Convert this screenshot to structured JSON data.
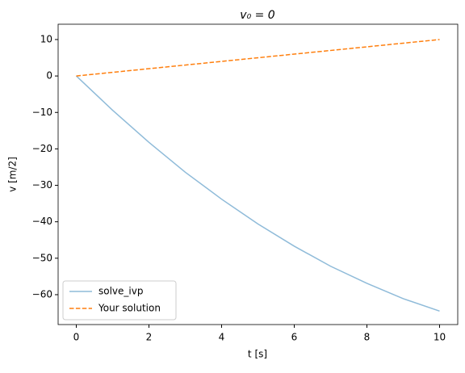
{
  "chart_data": {
    "type": "line",
    "title": "v₀ = 0",
    "xlabel": "t [s]",
    "ylabel": "v [m/2]",
    "series": [
      {
        "name": "solve_ivp",
        "color": "#1f77b4",
        "opacity": 0.5,
        "dash": false,
        "x": [
          0,
          1,
          2,
          3,
          4,
          5,
          6,
          7,
          8,
          9,
          10
        ],
        "values": [
          0,
          -9.4,
          -18.2,
          -26.4,
          -33.8,
          -40.6,
          -46.7,
          -52.2,
          -56.9,
          -61.1,
          -64.5
        ]
      },
      {
        "name": "Your solution",
        "color": "#ff7f0e",
        "opacity": 1,
        "dash": true,
        "x": [
          0,
          10
        ],
        "values": [
          0,
          10
        ]
      }
    ],
    "xlim": [
      -0.5,
      10.5
    ],
    "xticks": [
      0,
      2,
      4,
      6,
      8,
      10
    ],
    "ylim": [
      -68.2,
      14.2
    ],
    "yticks": [
      {
        "value": -60,
        "label": "−60"
      },
      {
        "value": -50,
        "label": "−50"
      },
      {
        "value": -40,
        "label": "−40"
      },
      {
        "value": -30,
        "label": "−30"
      },
      {
        "value": -20,
        "label": "−20"
      },
      {
        "value": -10,
        "label": "−10"
      },
      0,
      10
    ],
    "legend": "lower left",
    "grid": false
  }
}
